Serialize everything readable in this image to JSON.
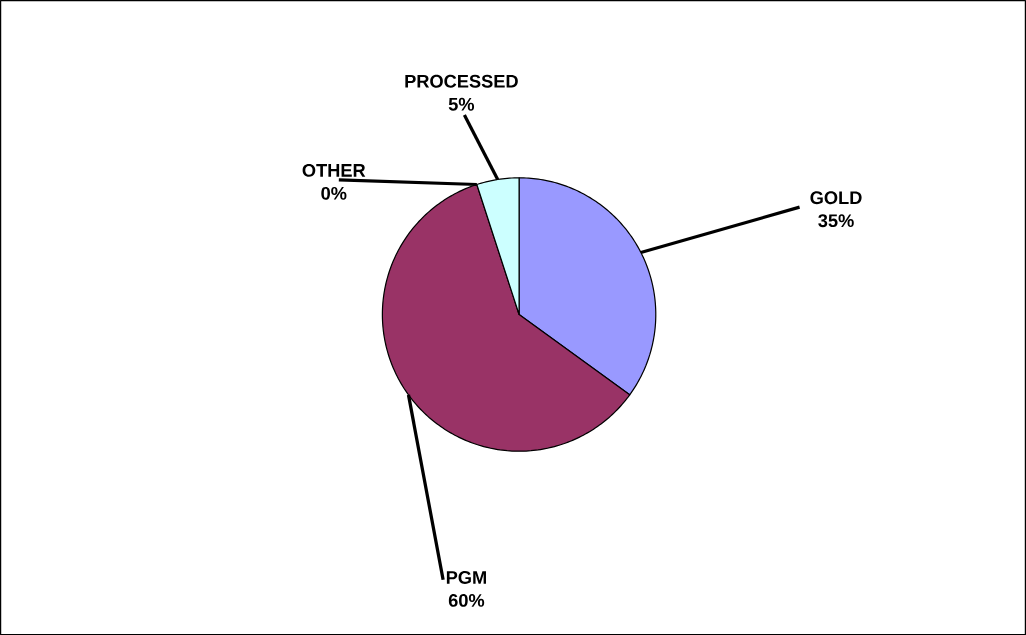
{
  "chart_data": {
    "type": "pie",
    "categories": [
      "GOLD",
      "PGM",
      "OTHER",
      "PROCESSED"
    ],
    "values": [
      35,
      60,
      0,
      5
    ],
    "colors": [
      "#9999ff",
      "#993366",
      "#ffffff",
      "#ccffff"
    ],
    "data_labels": true,
    "value_labels": [
      "35%",
      "60%",
      "0%",
      "5%"
    ]
  }
}
